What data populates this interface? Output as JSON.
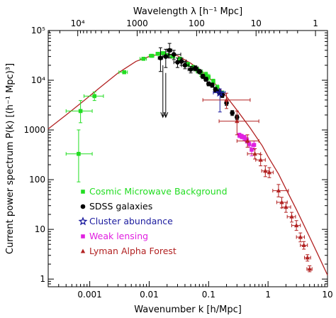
{
  "chart_data": {
    "type": "scatter",
    "title": "",
    "xlabel": "Wavenumber k [h/Mpc]",
    "ylabel": "Current power spectrum P(k) [(h⁻¹ Mpc)³]",
    "top_xlabel": "Wavelength λ [h⁻¹ Mpc]",
    "x_scale": "log",
    "y_scale": "log",
    "xlim": [
      0.0002,
      10
    ],
    "ylim": [
      0.7,
      100000
    ],
    "x_ticks": [
      {
        "value": 0.001,
        "label": "0.001"
      },
      {
        "value": 0.01,
        "label": "0.01"
      },
      {
        "value": 0.1,
        "label": "0.1"
      },
      {
        "value": 1,
        "label": "1"
      },
      {
        "value": 10,
        "label": "10"
      }
    ],
    "y_ticks": [
      {
        "value": 1,
        "label": "1"
      },
      {
        "value": 10,
        "label": "10"
      },
      {
        "value": 100,
        "label": "100"
      },
      {
        "value": 1000,
        "label": "1000"
      },
      {
        "value": 10000,
        "label": "10⁴"
      },
      {
        "value": 100000,
        "label": "10⁵"
      }
    ],
    "top_ticks": [
      {
        "value": 10000,
        "label": "10⁴"
      },
      {
        "value": 1000,
        "label": "1000"
      },
      {
        "value": 100,
        "label": "100"
      },
      {
        "value": 10,
        "label": "10"
      },
      {
        "value": 1,
        "label": "1"
      }
    ],
    "legend_position": "bottom-left",
    "model_curve": {
      "color": "#b22222",
      "points": [
        [
          0.0002,
          1050
        ],
        [
          0.0004,
          2000
        ],
        [
          0.0008,
          3900
        ],
        [
          0.0015,
          7200
        ],
        [
          0.003,
          14000
        ],
        [
          0.006,
          24000
        ],
        [
          0.01,
          30000
        ],
        [
          0.015,
          33500
        ],
        [
          0.02,
          34000
        ],
        [
          0.03,
          31000
        ],
        [
          0.05,
          22000
        ],
        [
          0.08,
          14500
        ],
        [
          0.1,
          11500
        ],
        [
          0.15,
          7000
        ],
        [
          0.2,
          4700
        ],
        [
          0.3,
          2500
        ],
        [
          0.5,
          1100
        ],
        [
          0.8,
          480
        ],
        [
          1,
          290
        ],
        [
          1.5,
          130
        ],
        [
          2,
          65
        ],
        [
          3,
          25
        ],
        [
          5,
          7
        ],
        [
          7,
          3
        ],
        [
          10,
          1.2
        ]
      ]
    },
    "series": [
      {
        "name": "Cosmic Microwave Background",
        "color": "#22dd22",
        "marker": "square",
        "points": [
          {
            "x": 0.00065,
            "y": 330,
            "xerr": [
              0.0004,
              0.0011
            ],
            "yerr": [
              90,
              1000
            ]
          },
          {
            "x": 0.0007,
            "y": 2400,
            "xerr": [
              0.0004,
              0.0011
            ],
            "yerr": [
              1400,
              3900
            ]
          },
          {
            "x": 0.0012,
            "y": 4800,
            "xerr": [
              0.0008,
              0.0017
            ],
            "yerr": [
              3900,
              5800
            ]
          },
          {
            "x": 0.0038,
            "y": 14500,
            "xerr": [
              0.0031,
              0.0043
            ],
            "yerr": [
              13500,
              15500
            ]
          },
          {
            "x": 0.008,
            "y": 27000,
            "xerr": [
              0.007,
              0.009
            ],
            "yerr": [
              25500,
              28500
            ]
          },
          {
            "x": 0.011,
            "y": 31000,
            "xerr": [
              0.01,
              0.012
            ],
            "yerr": [
              29500,
              32500
            ]
          },
          {
            "x": 0.014,
            "y": 34000,
            "xerr": [
              0.013,
              0.015
            ],
            "yerr": [
              32000,
              36000
            ]
          },
          {
            "x": 0.017,
            "y": 35000,
            "xerr": [
              0.0155,
              0.0185
            ],
            "yerr": [
              33000,
              37000
            ]
          },
          {
            "x": 0.02,
            "y": 32000,
            "xerr": [
              0.018,
              0.022
            ],
            "yerr": [
              30000,
              34000
            ]
          },
          {
            "x": 0.025,
            "y": 30000,
            "xerr": [
              0.023,
              0.027
            ],
            "yerr": [
              28000,
              32000
            ]
          },
          {
            "x": 0.033,
            "y": 27000,
            "xerr": [
              0.031,
              0.035
            ],
            "yerr": [
              25000,
              29000
            ]
          },
          {
            "x": 0.045,
            "y": 21000,
            "xerr": [
              0.042,
              0.048
            ],
            "yerr": [
              19000,
              23000
            ]
          },
          {
            "x": 0.055,
            "y": 18000,
            "xerr": [
              0.052,
              0.058
            ],
            "yerr": [
              16000,
              20000
            ]
          },
          {
            "x": 0.065,
            "y": 16000,
            "xerr": [
              0.062,
              0.068
            ],
            "yerr": [
              14000,
              18000
            ]
          },
          {
            "x": 0.075,
            "y": 14000,
            "xerr": [
              0.072,
              0.078
            ],
            "yerr": [
              12000,
              16000
            ]
          },
          {
            "x": 0.09,
            "y": 13000,
            "xerr": [
              0.086,
              0.094
            ],
            "yerr": [
              11500,
              14500
            ]
          },
          {
            "x": 0.1,
            "y": 11500,
            "xerr": [
              0.095,
              0.105
            ],
            "yerr": [
              10000,
              13000
            ]
          },
          {
            "x": 0.12,
            "y": 9500,
            "xerr": [
              0.114,
              0.126
            ],
            "yerr": [
              8500,
              10500
            ]
          },
          {
            "x": 0.14,
            "y": 7200,
            "xerr": [
              0.133,
              0.147
            ],
            "yerr": [
              6400,
              8000
            ]
          },
          {
            "x": 0.17,
            "y": 5500,
            "xerr": [
              0.162,
              0.178
            ],
            "yerr": [
              4900,
              6100
            ]
          }
        ]
      },
      {
        "name": "SDSS galaxies",
        "color": "#000000",
        "marker": "circle",
        "points": [
          {
            "x": 0.0155,
            "y": 28000,
            "xerr": [
              0.0142,
              0.0168
            ],
            "yerr": [
              15000,
              45000
            ]
          },
          {
            "x": 0.019,
            "y": 30000,
            "xerr": [
              0.017,
              0.021
            ],
            "yerr": [
              18000,
              42000
            ]
          },
          {
            "x": 0.022,
            "y": 40000,
            "xerr": [
              0.02,
              0.024
            ],
            "yerr": [
              28000,
              55000
            ]
          },
          {
            "x": 0.026,
            "y": 33000,
            "xerr": [
              0.021,
              0.034
            ],
            "yerr": [
              26000,
              40000
            ]
          },
          {
            "x": 0.03,
            "y": 23000,
            "xerr": [
              0.026,
              0.034
            ],
            "yerr": [
              18000,
              28000
            ]
          },
          {
            "x": 0.035,
            "y": 24000,
            "xerr": [
              0.03,
              0.042
            ],
            "yerr": [
              20000,
              28000
            ]
          },
          {
            "x": 0.04,
            "y": 20000,
            "xerr": [
              0.035,
              0.046
            ],
            "yerr": [
              17000,
              23000
            ]
          },
          {
            "x": 0.05,
            "y": 16500,
            "xerr": [
              0.045,
              0.056
            ],
            "yerr": [
              14000,
              19000
            ]
          },
          {
            "x": 0.06,
            "y": 17500,
            "xerr": [
              0.054,
              0.066
            ],
            "yerr": [
              15500,
              19500
            ]
          },
          {
            "x": 0.07,
            "y": 15000,
            "xerr": [
              0.064,
              0.077
            ],
            "yerr": [
              13500,
              16500
            ]
          },
          {
            "x": 0.08,
            "y": 12000,
            "xerr": [
              0.074,
              0.086
            ],
            "yerr": [
              10800,
              13200
            ]
          },
          {
            "x": 0.09,
            "y": 10500,
            "xerr": [
              0.084,
              0.097
            ],
            "yerr": [
              9500,
              11500
            ]
          },
          {
            "x": 0.1,
            "y": 8500,
            "xerr": [
              0.094,
              0.106
            ],
            "yerr": [
              7700,
              9300
            ]
          },
          {
            "x": 0.115,
            "y": 8000,
            "xerr": [
              0.108,
              0.122
            ],
            "yerr": [
              7200,
              8800
            ]
          },
          {
            "x": 0.13,
            "y": 6500,
            "xerr": [
              0.122,
              0.138
            ],
            "yerr": [
              5800,
              7200
            ]
          },
          {
            "x": 0.15,
            "y": 5800,
            "xerr": [
              0.141,
              0.159
            ],
            "yerr": [
              5200,
              6400
            ]
          },
          {
            "x": 0.17,
            "y": 5000,
            "xerr": [
              0.16,
              0.18
            ],
            "yerr": [
              4500,
              5500
            ]
          },
          {
            "x": 0.2,
            "y": 3500,
            "xerr": [
              0.19,
              0.21
            ],
            "yerr": [
              3100,
              3900
            ]
          },
          {
            "x": 0.25,
            "y": 2200,
            "xerr": [
              0.235,
              0.265
            ],
            "yerr": [
              1950,
              2450
            ]
          },
          {
            "x": 0.3,
            "y": 1800,
            "xerr": [
              0.285,
              0.315
            ],
            "yerr": [
              1600,
              2000
            ]
          }
        ]
      },
      {
        "name": "Cluster abundance",
        "color": "#1a1a9e",
        "marker": "star",
        "points": [
          {
            "x": 0.155,
            "y": 5600,
            "xerr": [
              0.12,
              0.19
            ],
            "yerr": [
              2300,
              6700
            ]
          }
        ]
      },
      {
        "name": "Weak lensing",
        "color": "#e020e0",
        "marker": "square",
        "points": [
          {
            "x": 0.33,
            "y": 780,
            "xerr": [
              0.31,
              0.35
            ],
            "yerr": [
              700,
              860
            ]
          },
          {
            "x": 0.36,
            "y": 740,
            "xerr": [
              0.34,
              0.38
            ],
            "yerr": [
              660,
              820
            ]
          },
          {
            "x": 0.4,
            "y": 700,
            "xerr": [
              0.375,
              0.425
            ],
            "yerr": [
              620,
              780
            ]
          },
          {
            "x": 0.44,
            "y": 620,
            "xerr": [
              0.41,
              0.47
            ],
            "yerr": [
              540,
              700
            ]
          },
          {
            "x": 0.48,
            "y": 520,
            "xerr": [
              0.45,
              0.51
            ],
            "yerr": [
              450,
              590
            ]
          },
          {
            "x": 0.53,
            "y": 400,
            "xerr": [
              0.5,
              0.56
            ],
            "yerr": [
              300,
              500
            ]
          },
          {
            "x": 0.58,
            "y": 500,
            "xerr": [
              0.54,
              0.62
            ],
            "yerr": [
              400,
              600
            ]
          }
        ]
      },
      {
        "name": "Lyman Alpha Forest",
        "color": "#b22222",
        "marker": "triangle",
        "points": [
          {
            "x": 0.2,
            "y": 4000,
            "xerr": [
              0.08,
              0.5
            ],
            "yerr": [
              2700,
              5500
            ]
          },
          {
            "x": 0.3,
            "y": 1500,
            "xerr": [
              0.15,
              0.7
            ],
            "yerr": [
              800,
              2400
            ]
          },
          {
            "x": 0.45,
            "y": 600,
            "xerr": [
              0.3,
              0.7
            ],
            "yerr": [
              450,
              800
            ]
          },
          {
            "x": 0.6,
            "y": 330,
            "xerr": [
              0.45,
              0.75
            ],
            "yerr": [
              260,
              420
            ]
          },
          {
            "x": 0.75,
            "y": 250,
            "xerr": [
              0.62,
              0.9
            ],
            "yerr": [
              190,
              320
            ]
          },
          {
            "x": 0.9,
            "y": 150,
            "xerr": [
              0.78,
              1.05
            ],
            "yerr": [
              115,
              190
            ]
          },
          {
            "x": 1.05,
            "y": 140,
            "xerr": [
              0.9,
              1.22
            ],
            "yerr": [
              110,
              175
            ]
          },
          {
            "x": 1.5,
            "y": 60,
            "xerr": [
              1.2,
              2.2
            ],
            "yerr": [
              45,
              80
            ]
          },
          {
            "x": 1.7,
            "y": 35,
            "xerr": [
              1.4,
              2.1
            ],
            "yerr": [
              27,
              44
            ]
          },
          {
            "x": 2.0,
            "y": 28,
            "xerr": [
              1.7,
              2.4
            ],
            "yerr": [
              22,
              35
            ]
          },
          {
            "x": 2.5,
            "y": 18,
            "xerr": [
              2.1,
              2.9
            ],
            "yerr": [
              14,
              22
            ]
          },
          {
            "x": 3.0,
            "y": 12,
            "xerr": [
              2.5,
              3.5
            ],
            "yerr": [
              9.5,
              15
            ]
          },
          {
            "x": 3.5,
            "y": 7,
            "xerr": [
              3.0,
              4.1
            ],
            "yerr": [
              5.6,
              8.5
            ]
          },
          {
            "x": 4.0,
            "y": 4.8,
            "xerr": [
              3.5,
              4.6
            ],
            "yerr": [
              4.0,
              5.7
            ]
          },
          {
            "x": 4.6,
            "y": 2.7,
            "xerr": [
              4.1,
              5.2
            ],
            "yerr": [
              2.3,
              3.1
            ]
          },
          {
            "x": 5.0,
            "y": 1.6,
            "xerr": [
              4.5,
              5.5
            ],
            "yerr": [
              1.4,
              1.85
            ]
          }
        ]
      }
    ],
    "upper_limits": {
      "color": "#000000",
      "points": [
        {
          "x": 0.017,
          "y": 20000
        },
        {
          "x": 0.019,
          "y": 14000
        }
      ],
      "arrow_to": 1800
    }
  }
}
